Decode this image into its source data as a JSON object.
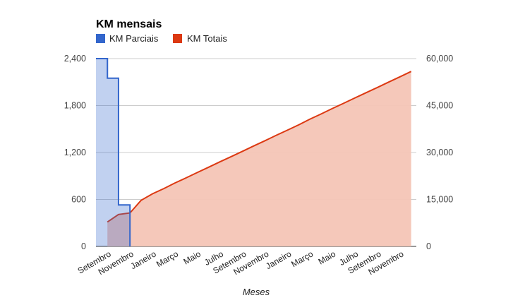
{
  "chart_data": {
    "type": "area",
    "title": "KM mensais",
    "xlabel": "Meses",
    "ylabel_left": "",
    "ylabel_right": "",
    "legend_position": "top-left",
    "grid": true,
    "x_tick_labels": [
      "Setembro",
      "Novembro",
      "Janeiro",
      "Março",
      "Maio",
      "Julho",
      "Setembro",
      "Novembro",
      "Janeiro",
      "Março",
      "Maio",
      "Julho",
      "Setembro",
      "Novembro"
    ],
    "y_left": {
      "min": 0,
      "max": 2400,
      "ticks": [
        "0",
        "600",
        "1,200",
        "1,800",
        "2,400"
      ]
    },
    "y_right": {
      "min": 0,
      "max": 60000,
      "ticks": [
        "0",
        "15,000",
        "30,000",
        "45,000",
        "60,000"
      ]
    },
    "series": [
      {
        "name": "KM Parciais",
        "axis": "left",
        "style": "stepped-area",
        "color": "#3366cc",
        "fill": "#c2cfee",
        "x": [
          "2011-08",
          "2011-09",
          "2011-10",
          "2011-11"
        ],
        "values": [
          2400,
          2150,
          530,
          0
        ]
      },
      {
        "name": "KM Totais",
        "axis": "right",
        "style": "area",
        "color": "#dc3912",
        "fill": "#f4c5b6",
        "x": [
          "2011-09",
          "2011-10",
          "2011-11",
          "2011-12",
          "2012-01",
          "2012-02",
          "2012-03",
          "2012-04",
          "2012-05",
          "2012-06",
          "2012-07",
          "2012-08",
          "2012-09",
          "2012-10",
          "2012-11",
          "2012-12",
          "2013-01",
          "2013-02",
          "2013-03",
          "2013-04",
          "2013-05",
          "2013-06",
          "2013-07",
          "2013-08",
          "2013-09",
          "2013-10",
          "2013-11",
          "2013-12"
        ],
        "values": [
          7800,
          10200,
          10700,
          14700,
          16800,
          18500,
          20200,
          21900,
          23600,
          25300,
          27000,
          28700,
          30400,
          32100,
          33800,
          35500,
          37200,
          38900,
          40600,
          42300,
          44000,
          45700,
          47400,
          49100,
          50800,
          52500,
          54200,
          55900
        ]
      }
    ]
  }
}
